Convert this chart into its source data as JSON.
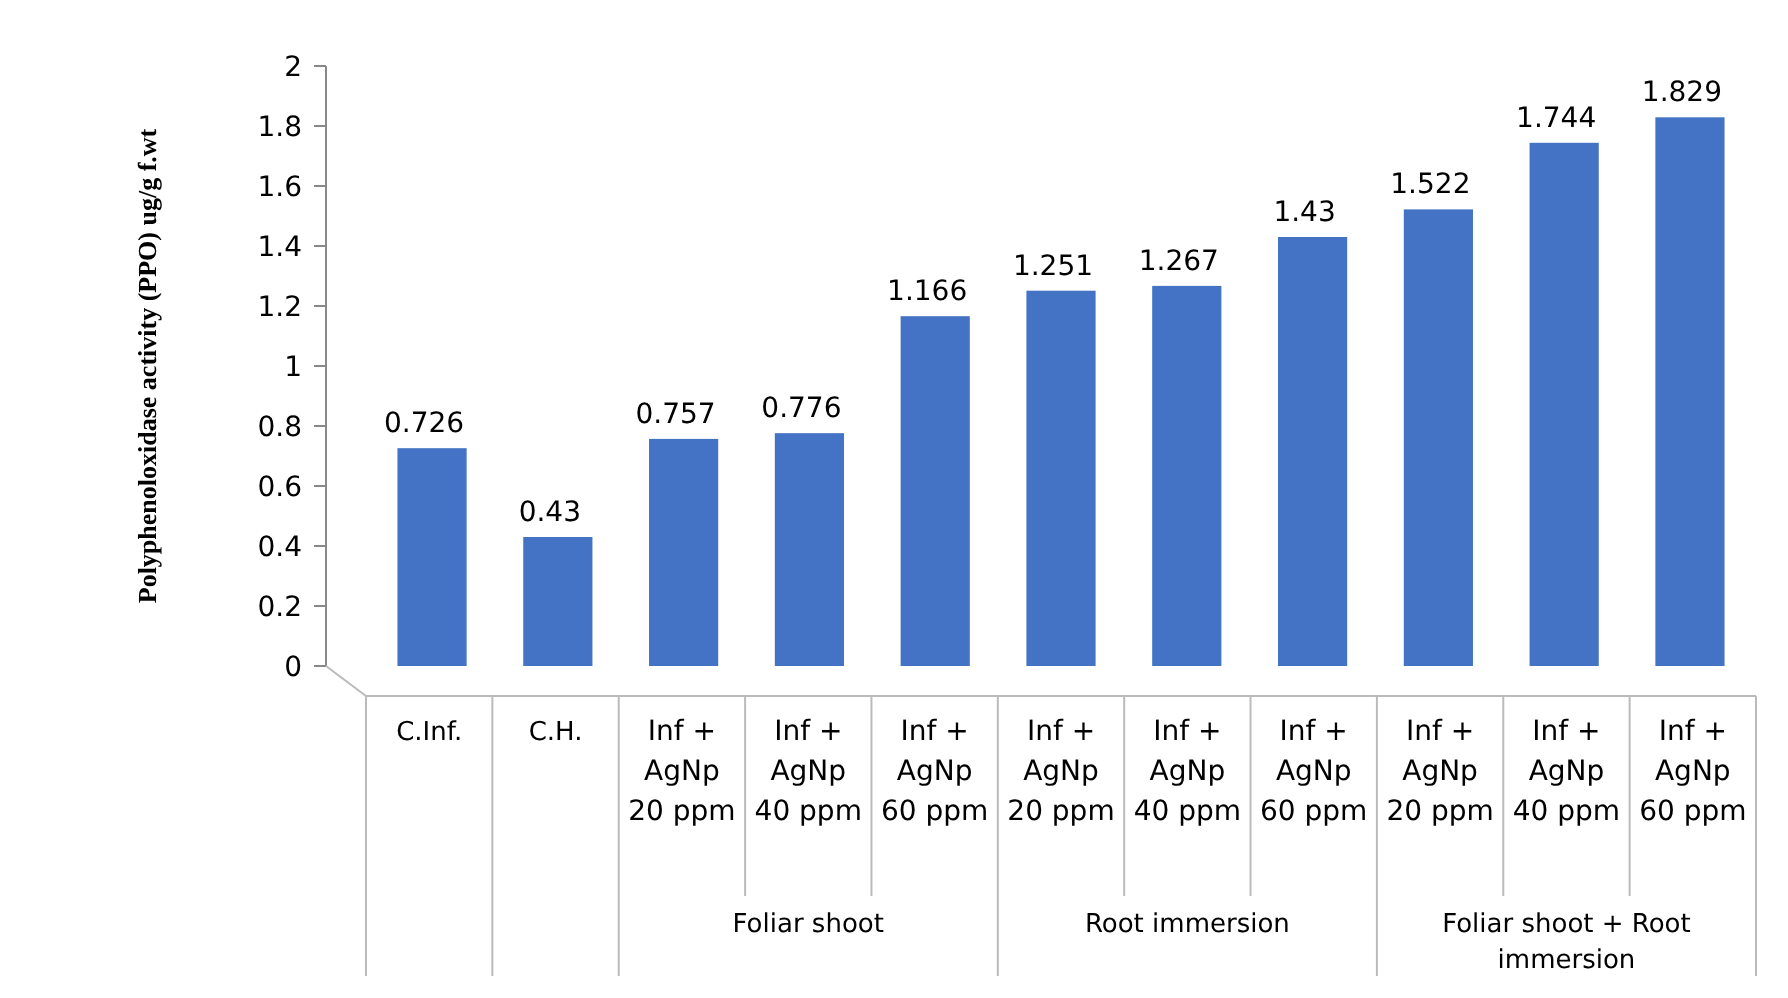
{
  "chart_data": {
    "type": "bar",
    "ylabel": "Polyphenoloxidase activity  (PPO) ug/g f.wt",
    "categories": [
      "C.Inf.",
      "C.H.",
      "Inf + AgNp 20 ppm",
      "Inf + AgNp 40 ppm",
      "Inf + AgNp 60 ppm",
      "Inf + AgNp 20 ppm",
      "Inf + AgNp 40 ppm",
      "Inf + AgNp 60 ppm",
      "Inf + AgNp 20 ppm",
      "Inf + AgNp 40 ppm",
      "Inf + AgNp 60 ppm"
    ],
    "values": [
      0.726,
      0.43,
      0.757,
      0.776,
      1.166,
      1.251,
      1.267,
      1.43,
      1.522,
      1.744,
      1.829
    ],
    "color": "#4472c4",
    "ylim": [
      0,
      2
    ],
    "yticks": [
      0,
      0.2,
      0.4,
      0.6,
      0.8,
      1,
      1.2,
      1.4,
      1.6,
      1.8,
      2
    ],
    "data_labels": true,
    "annotations": [
      "Foliar shoot",
      "Root immersion",
      "Foliar shoot + Root immersion"
    ]
  }
}
